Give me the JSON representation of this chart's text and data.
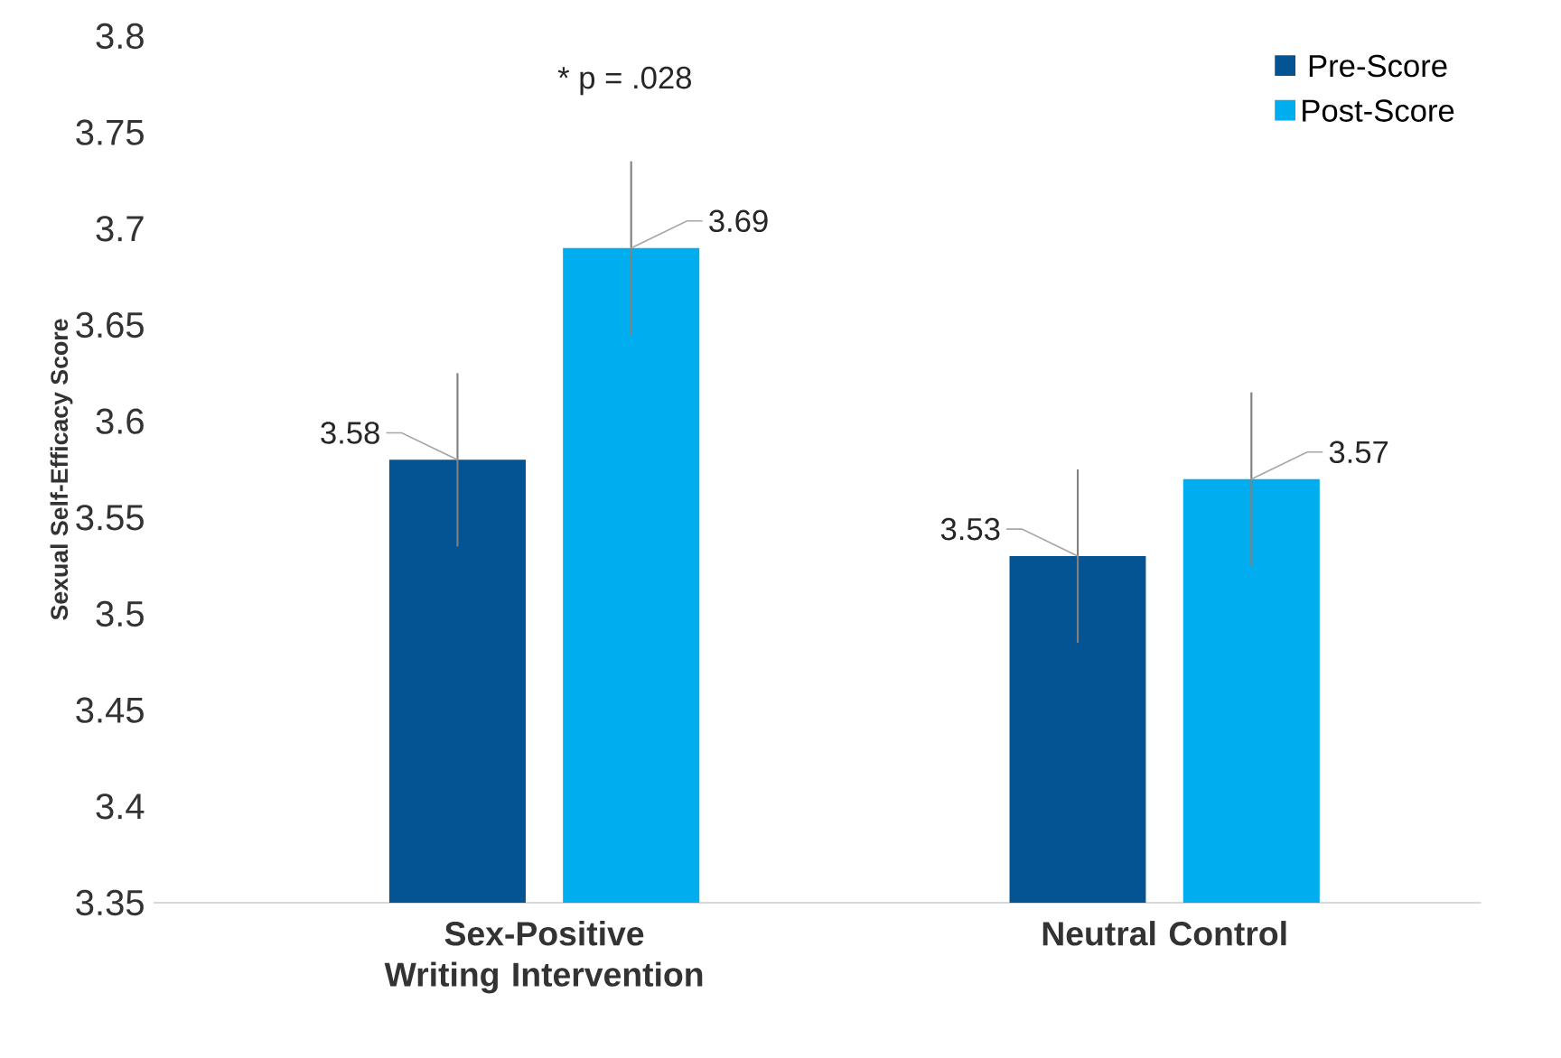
{
  "chart_data": {
    "type": "bar",
    "ylabel": "Sexual Self-Efficacy Score",
    "categories": [
      "Sex-Positive Writing Intervention",
      "Neutral Control"
    ],
    "series": [
      {
        "name": "Pre-Score",
        "color": "#045494",
        "values": [
          3.58,
          3.53
        ],
        "errors": [
          0.045,
          0.045
        ]
      },
      {
        "name": "Post-Score",
        "color": "#00aeef",
        "values": [
          3.69,
          3.57
        ],
        "errors": [
          0.045,
          0.045
        ]
      }
    ],
    "ylim": [
      3.35,
      3.8
    ],
    "yticks": [
      3.35,
      3.4,
      3.45,
      3.5,
      3.55,
      3.6,
      3.65,
      3.7,
      3.75,
      3.8
    ],
    "data_labels": true,
    "legend": "top right",
    "grid": false,
    "annotations": [
      "* p = .028"
    ]
  }
}
